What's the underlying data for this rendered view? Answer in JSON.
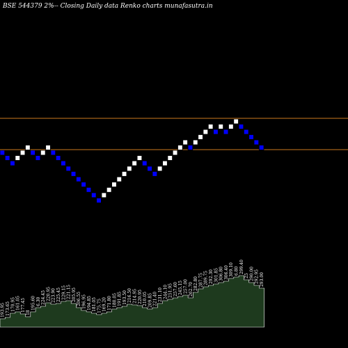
{
  "header": {
    "title": "BSE 544379 2%-- Closing Daily data  Renko  charts munafasutra.in"
  },
  "colors": {
    "background": "#000000",
    "up_brick": "#ffffff",
    "down_brick": "#0000ff",
    "brick_border": "#000000",
    "level_line": "#cc7a1e",
    "volume_fill": "#1e3a1e",
    "volume_edge": "#ffffff"
  },
  "chart_data": {
    "type": "renko",
    "brick_percent": 2,
    "levels": [
      309.5,
      238.0
    ],
    "bricks": [
      {
        "dir": "down",
        "value": 242.0
      },
      {
        "dir": "down",
        "value": 237.2
      },
      {
        "dir": "down",
        "value": 232.5
      },
      {
        "dir": "up",
        "value": 237.2
      },
      {
        "dir": "up",
        "value": 242.0
      },
      {
        "dir": "up",
        "value": 246.8
      },
      {
        "dir": "down",
        "value": 242.0
      },
      {
        "dir": "down",
        "value": 237.2
      },
      {
        "dir": "up",
        "value": 242.0
      },
      {
        "dir": "up",
        "value": 246.8
      },
      {
        "dir": "down",
        "value": 242.0
      },
      {
        "dir": "down",
        "value": 237.2
      },
      {
        "dir": "down",
        "value": 232.5
      },
      {
        "dir": "down",
        "value": 227.8
      },
      {
        "dir": "down",
        "value": 223.3
      },
      {
        "dir": "down",
        "value": 218.8
      },
      {
        "dir": "down",
        "value": 214.5
      },
      {
        "dir": "down",
        "value": 210.2
      },
      {
        "dir": "down",
        "value": 206.0
      },
      {
        "dir": "down",
        "value": 201.9
      },
      {
        "dir": "up",
        "value": 206.0
      },
      {
        "dir": "up",
        "value": 210.2
      },
      {
        "dir": "up",
        "value": 214.5
      },
      {
        "dir": "up",
        "value": 218.8
      },
      {
        "dir": "up",
        "value": 223.3
      },
      {
        "dir": "up",
        "value": 227.8
      },
      {
        "dir": "up",
        "value": 232.5
      },
      {
        "dir": "up",
        "value": 237.2
      },
      {
        "dir": "down",
        "value": 232.5
      },
      {
        "dir": "down",
        "value": 227.8
      },
      {
        "dir": "down",
        "value": 223.3
      },
      {
        "dir": "up",
        "value": 227.8
      },
      {
        "dir": "up",
        "value": 232.5
      },
      {
        "dir": "up",
        "value": 237.2
      },
      {
        "dir": "up",
        "value": 242.0
      },
      {
        "dir": "up",
        "value": 246.8
      },
      {
        "dir": "up",
        "value": 251.7
      },
      {
        "dir": "down",
        "value": 246.8
      },
      {
        "dir": "up",
        "value": 251.7
      },
      {
        "dir": "up",
        "value": 256.8
      },
      {
        "dir": "up",
        "value": 261.9
      },
      {
        "dir": "up",
        "value": 267.2
      },
      {
        "dir": "down",
        "value": 261.9
      },
      {
        "dir": "up",
        "value": 267.2
      },
      {
        "dir": "down",
        "value": 261.9
      },
      {
        "dir": "up",
        "value": 267.2
      },
      {
        "dir": "up",
        "value": 272.5
      },
      {
        "dir": "down",
        "value": 267.2
      },
      {
        "dir": "down",
        "value": 261.9
      },
      {
        "dir": "down",
        "value": 256.8
      },
      {
        "dir": "down",
        "value": 251.7
      },
      {
        "dir": "down",
        "value": 246.8
      }
    ],
    "volume": {
      "values": [
        12,
        14,
        20,
        22,
        19,
        15,
        22,
        28,
        30,
        35,
        33,
        34,
        37,
        38,
        34,
        28,
        24,
        22,
        20,
        18,
        20,
        22,
        26,
        28,
        30,
        33,
        32,
        31,
        28,
        26,
        28,
        34,
        38,
        40,
        42,
        44,
        46,
        42,
        50,
        55,
        58,
        60,
        62,
        64,
        66,
        70,
        72,
        74,
        68,
        64,
        60,
        56
      ],
      "labels": [
        "193.95",
        "173.65",
        "170.95",
        "161.05",
        "177.45",
        "18",
        "195.60",
        "6.30",
        "224.45",
        "220.95",
        "223.90",
        "225.45",
        "229.15",
        "221.15",
        "205.95",
        "206.55",
        "196.95",
        "194.85",
        "181.05",
        "175.75",
        "169.20",
        "171.80",
        "180.05",
        "191.85",
        "193.50",
        "216.50",
        "214.95",
        "220.95",
        "210.05",
        "209.85",
        "221.40",
        "231.10",
        "244.10",
        "251.95",
        "257.60",
        "245.15",
        "257.00",
        "262.70",
        "282.80",
        "287.75",
        "289.75",
        "292.30",
        "301.85",
        "306.80",
        "306.40",
        "309.10",
        "6.80",
        "299.40",
        "25",
        "290.00",
        "292.95",
        "293.00"
      ]
    }
  }
}
